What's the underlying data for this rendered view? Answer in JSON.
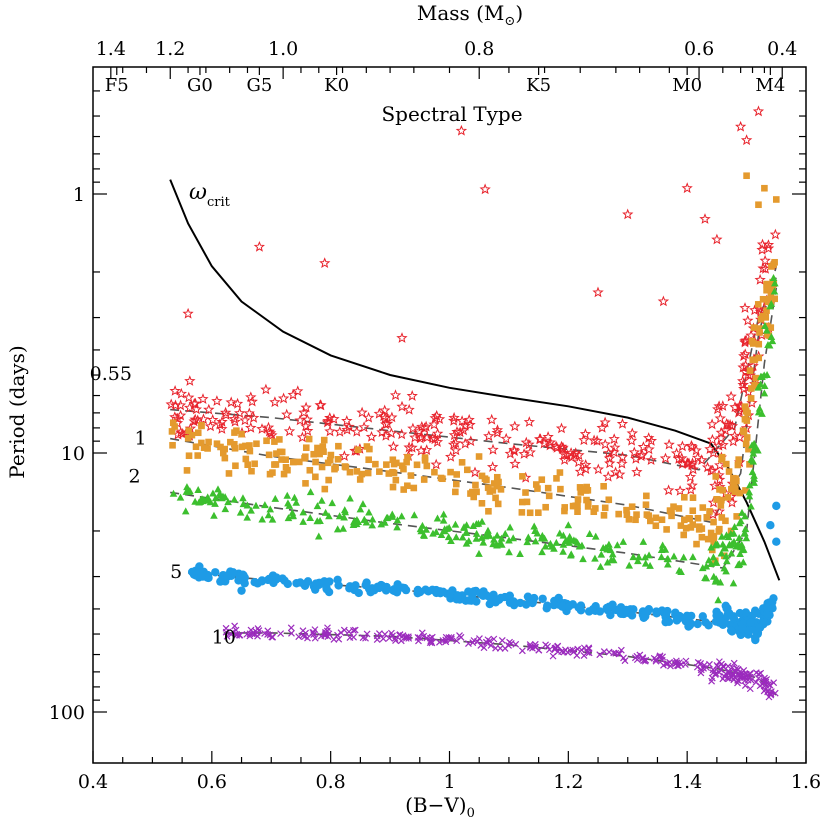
{
  "chart_data": {
    "type": "scatter",
    "xlabel": "(B−V)",
    "xlabel_sub": "0",
    "ylabel": "Period (days)",
    "top_axis_label": "Mass (M",
    "top_axis_label_symbol": "⊙",
    "top_axis_label_close": ")",
    "spectral_label": "Spectral Type",
    "xlim": [
      0.4,
      1.6
    ],
    "ylim_log": [
      0.25,
      150
    ],
    "y_scale": "log",
    "x_ticks": [
      "0.4",
      "0.6",
      "0.8",
      "1",
      "1.2",
      "1.4",
      "1.6"
    ],
    "y_ticks": [
      "1",
      "10",
      "100"
    ],
    "mass_ticks": [
      {
        "label": "1.4",
        "bv": 0.43
      },
      {
        "label": "1.2",
        "bv": 0.53
      },
      {
        "label": "1.0",
        "bv": 0.72
      },
      {
        "label": "0.8",
        "bv": 1.05
      },
      {
        "label": "0.6",
        "bv": 1.42
      },
      {
        "label": "0.4",
        "bv": 1.56
      }
    ],
    "mass_minor_ticks": [
      0.45,
      0.49,
      0.56,
      0.59,
      0.63,
      0.66,
      0.75,
      0.78,
      0.82,
      0.86,
      0.9,
      0.94,
      1.0,
      1.1,
      1.16,
      1.22,
      1.28,
      1.32,
      1.37,
      1.46,
      1.49,
      1.51,
      1.53
    ],
    "spectral_types": [
      {
        "label": "F5",
        "bv": 0.44
      },
      {
        "label": "G0",
        "bv": 0.58
      },
      {
        "label": "G5",
        "bv": 0.68
      },
      {
        "label": "K0",
        "bv": 0.81
      },
      {
        "label": "K5",
        "bv": 1.15
      },
      {
        "label": "M0",
        "bv": 1.4
      },
      {
        "label": "M4",
        "bv": 1.54
      }
    ],
    "crit_label": "ω",
    "crit_label_sub": "crit",
    "crit_curve": {
      "x": [
        0.53,
        0.56,
        0.6,
        0.65,
        0.72,
        0.8,
        0.9,
        1.0,
        1.1,
        1.2,
        1.3,
        1.38,
        1.44,
        1.47,
        1.5,
        1.53,
        1.555
      ],
      "y": [
        0.88,
        1.3,
        1.9,
        2.6,
        3.4,
        4.2,
        5.0,
        5.6,
        6.1,
        6.6,
        7.3,
        8.2,
        9.2,
        11.5,
        15.5,
        22.0,
        31.0
      ]
    },
    "series": [
      {
        "name": "0.55",
        "color": "#e8232c",
        "marker": "star",
        "label_bv": 0.43,
        "label_p": 4.9,
        "ridge_x": [
          0.53,
          0.7,
          0.9,
          1.1,
          1.3,
          1.42,
          1.48,
          1.52,
          1.55
        ],
        "ridge_p": [
          6.8,
          7.3,
          8.2,
          9.2,
          10.2,
          11.6,
          8.0,
          3.0,
          2.1
        ],
        "scatter_dex": 0.055,
        "outliers": [
          [
            1.02,
            0.57
          ],
          [
            1.06,
            0.96
          ],
          [
            0.68,
            1.6
          ],
          [
            0.79,
            1.85
          ],
          [
            0.56,
            2.9
          ],
          [
            0.92,
            3.6
          ],
          [
            1.25,
            2.4
          ],
          [
            1.3,
            1.2
          ],
          [
            1.36,
            2.6
          ],
          [
            1.4,
            0.95
          ],
          [
            1.43,
            1.25
          ],
          [
            1.45,
            1.5
          ],
          [
            1.49,
            0.55
          ],
          [
            1.5,
            0.62
          ],
          [
            1.52,
            0.48
          ]
        ]
      },
      {
        "name": "1",
        "color": "#e49a2e",
        "marker": "square",
        "label_bv": 0.48,
        "label_p": 8.7,
        "ridge_x": [
          0.53,
          0.7,
          0.9,
          1.1,
          1.3,
          1.44,
          1.49,
          1.52,
          1.55
        ],
        "ridge_p": [
          8.8,
          10.3,
          11.8,
          13.6,
          15.9,
          18.5,
          12.0,
          3.5,
          1.9
        ],
        "scatter_dex": 0.045,
        "outliers": [
          [
            1.5,
            0.85
          ],
          [
            1.52,
            1.1
          ],
          [
            1.53,
            0.95
          ],
          [
            1.55,
            1.05
          ]
        ]
      },
      {
        "name": "2",
        "color": "#3cbf2e",
        "marker": "triangle",
        "label_bv": 0.47,
        "label_p": 12.2,
        "ridge_x": [
          0.53,
          0.7,
          0.9,
          1.1,
          1.3,
          1.46,
          1.5,
          1.53,
          1.55
        ],
        "ridge_p": [
          14.2,
          16.2,
          18.7,
          21.3,
          24.4,
          27.8,
          20.0,
          4.5,
          2.3
        ],
        "scatter_dex": 0.03,
        "outliers": [
          [
            0.85,
            16.5
          ],
          [
            0.78,
            21.0
          ],
          [
            1.2,
            19.0
          ]
        ]
      },
      {
        "name": "5",
        "color": "#1e9be6",
        "marker": "circle",
        "label_bv": 0.54,
        "label_p": 28.5,
        "ridge_x": [
          0.56,
          0.7,
          0.9,
          1.1,
          1.3,
          1.45,
          1.52,
          1.55
        ],
        "ridge_p": [
          29.0,
          31.0,
          33.5,
          36.8,
          41.0,
          45.0,
          47.0,
          35.0
        ],
        "scatter_dex": 0.012,
        "outliers": [
          [
            1.55,
            16.0
          ],
          [
            1.55,
            22.0
          ],
          [
            1.54,
            19.0
          ],
          [
            0.65,
            34.0
          ]
        ]
      },
      {
        "name": "10",
        "color": "#9b2bbd",
        "marker": "cross",
        "label_bv": 0.62,
        "label_p": 51.0,
        "ridge_x": [
          0.62,
          0.7,
          0.9,
          1.1,
          1.3,
          1.45,
          1.52,
          1.55
        ],
        "ridge_p": [
          49.5,
          49.5,
          51.0,
          55.0,
          61.0,
          68.0,
          74.0,
          86.0
        ],
        "scatter_dex": 0.01,
        "outliers": []
      }
    ]
  }
}
